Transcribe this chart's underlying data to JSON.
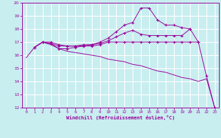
{
  "background_color": "#c8eef0",
  "grid_color": "#ffffff",
  "line_color": "#990099",
  "marker": "+",
  "xlabel": "Windchill (Refroidissement éolien,°C)",
  "xlim": [
    -0.5,
    23.5
  ],
  "ylim": [
    12,
    20
  ],
  "yticks": [
    12,
    13,
    14,
    15,
    16,
    17,
    18,
    19,
    20
  ],
  "xticks": [
    0,
    1,
    2,
    3,
    4,
    5,
    6,
    7,
    8,
    9,
    10,
    11,
    12,
    13,
    14,
    15,
    16,
    17,
    18,
    19,
    20,
    21,
    22,
    23
  ],
  "series": [
    {
      "x": [
        0,
        1,
        2,
        3,
        4,
        5,
        6,
        7,
        8,
        9,
        10,
        11,
        12,
        13,
        14,
        15,
        16,
        17,
        18,
        19,
        20,
        21,
        22,
        23
      ],
      "y": [
        15.8,
        16.6,
        17.0,
        16.8,
        16.5,
        16.3,
        16.2,
        16.1,
        16.0,
        15.9,
        15.7,
        15.6,
        15.5,
        15.3,
        15.2,
        15.0,
        14.8,
        14.7,
        14.5,
        14.3,
        14.2,
        14.0,
        14.2,
        12.0
      ],
      "has_markers": false
    },
    {
      "x": [
        1,
        2,
        3,
        4,
        5,
        6,
        7,
        8,
        9,
        10,
        11,
        12,
        13,
        14,
        15,
        16,
        17,
        18,
        19,
        20,
        21,
        22,
        23
      ],
      "y": [
        16.6,
        17.0,
        16.9,
        16.5,
        16.5,
        16.6,
        16.7,
        16.8,
        17.0,
        17.3,
        17.8,
        18.3,
        18.5,
        19.6,
        19.6,
        18.7,
        18.3,
        18.3,
        18.1,
        18.0,
        17.0,
        14.4,
        12.0
      ],
      "has_markers": true
    },
    {
      "x": [
        1,
        2,
        3,
        4,
        5,
        6,
        7,
        8,
        9,
        10,
        11,
        12,
        13,
        14,
        15,
        16,
        17,
        18,
        19,
        20
      ],
      "y": [
        16.6,
        17.0,
        16.9,
        16.7,
        16.7,
        16.7,
        16.8,
        16.8,
        16.9,
        17.1,
        17.4,
        17.7,
        17.9,
        17.6,
        17.5,
        17.5,
        17.5,
        17.5,
        17.5,
        18.0
      ],
      "has_markers": true
    },
    {
      "x": [
        1,
        2,
        3,
        4,
        5,
        6,
        7,
        8,
        9,
        10,
        11,
        12,
        13,
        14,
        15,
        16,
        17,
        18,
        19,
        20,
        21
      ],
      "y": [
        16.6,
        17.0,
        17.0,
        16.8,
        16.7,
        16.7,
        16.7,
        16.7,
        16.8,
        17.0,
        17.0,
        17.0,
        17.0,
        17.0,
        17.0,
        17.0,
        17.0,
        17.0,
        17.0,
        17.0,
        17.0
      ],
      "has_markers": true
    }
  ]
}
